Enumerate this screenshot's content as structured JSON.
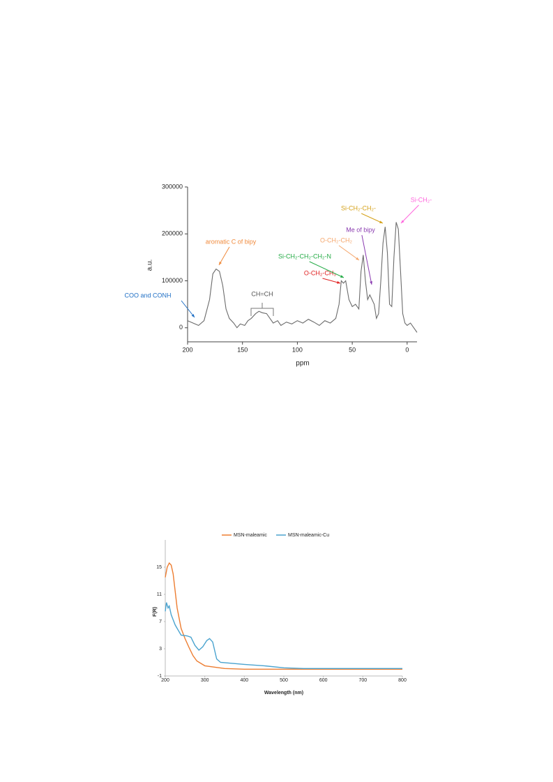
{
  "chart_data": [
    {
      "type": "line",
      "xlabel": "ppm",
      "ylabel": "a.u.",
      "color": "#6b6b6b",
      "x": [
        200,
        195,
        190,
        185,
        180,
        177,
        174,
        171,
        168,
        165,
        162,
        158,
        155,
        152,
        148,
        145,
        142,
        138,
        135,
        132,
        128,
        125,
        122,
        118,
        115,
        110,
        105,
        100,
        95,
        90,
        85,
        80,
        75,
        70,
        65,
        62,
        60,
        58,
        56,
        53,
        50,
        47,
        44,
        42,
        40,
        38,
        36,
        34,
        32,
        30,
        28,
        26,
        24,
        22,
        20,
        18,
        16,
        14,
        12,
        10,
        8,
        6,
        4,
        2,
        0,
        -3,
        -6,
        -9
      ],
      "values": [
        15000,
        10000,
        5000,
        15000,
        60000,
        115000,
        125000,
        120000,
        90000,
        40000,
        20000,
        10000,
        0,
        8000,
        5000,
        15000,
        20000,
        30000,
        35000,
        32000,
        30000,
        20000,
        10000,
        15000,
        5000,
        12000,
        8000,
        15000,
        10000,
        18000,
        12000,
        5000,
        15000,
        10000,
        20000,
        50000,
        100000,
        95000,
        100000,
        60000,
        45000,
        50000,
        40000,
        120000,
        155000,
        100000,
        60000,
        70000,
        60000,
        50000,
        20000,
        30000,
        100000,
        180000,
        215000,
        160000,
        50000,
        45000,
        150000,
        225000,
        210000,
        120000,
        30000,
        10000,
        5000,
        10000,
        0,
        -10000
      ],
      "xlim": [
        200,
        -9
      ],
      "xticks": [
        200,
        150,
        100,
        50,
        0
      ],
      "ylim": [
        -30000,
        300000
      ],
      "yticks": [
        0,
        100000,
        200000,
        300000
      ],
      "annotations": [
        {
          "text": "COO and CONH",
          "color": "#1f6fc5"
        },
        {
          "text": "aromatic C of bipy",
          "color": "#f08a3c"
        },
        {
          "text": "CH=CH",
          "color": "#555555"
        },
        {
          "text": "O-CH₂-CH₃",
          "color": "#e02020"
        },
        {
          "text": "Si-CH₂-CH₂-CH₂-N",
          "color": "#22aa44"
        },
        {
          "text": "O-CH₂-CH₂",
          "color": "#f5a66b"
        },
        {
          "text": "Me of bipy",
          "color": "#8a3bb0"
        },
        {
          "text": "Si-CH₂-CH₂-",
          "color": "#d4a017"
        },
        {
          "text": "Si-CH₂-",
          "color": "#ff66dd"
        }
      ]
    },
    {
      "type": "line",
      "xlabel": "Wavelength (nm)",
      "ylabel": "F(R)",
      "xlim": [
        200,
        800
      ],
      "xticks": [
        200,
        300,
        400,
        500,
        600,
        700,
        800
      ],
      "ylim": [
        -1,
        19
      ],
      "yticks": [
        -1,
        3,
        7,
        11,
        15
      ],
      "series": [
        {
          "name": "MSN-maleamic",
          "color": "#ed7d31",
          "x": [
            200,
            205,
            210,
            215,
            220,
            230,
            240,
            250,
            260,
            270,
            280,
            300,
            350,
            400,
            500,
            600,
            800
          ],
          "values": [
            13.5,
            15,
            15.6,
            15.3,
            14,
            9,
            6,
            4.5,
            3.2,
            2,
            1.2,
            0.5,
            0.1,
            0,
            0,
            0,
            0
          ]
        },
        {
          "name": "MSN-maleamic-Cu",
          "color": "#4aa3cf",
          "x": [
            200,
            203,
            207,
            210,
            215,
            225,
            240,
            255,
            265,
            275,
            285,
            295,
            305,
            312,
            320,
            330,
            340,
            400,
            450,
            500,
            550,
            600,
            800
          ],
          "values": [
            8.5,
            9.8,
            9,
            9.3,
            8,
            6.5,
            5,
            4.9,
            4.7,
            3.5,
            2.8,
            3.3,
            4.2,
            4.5,
            4,
            1.5,
            1,
            0.7,
            0.5,
            0.2,
            0.1,
            0.1,
            0.1
          ]
        }
      ]
    }
  ]
}
